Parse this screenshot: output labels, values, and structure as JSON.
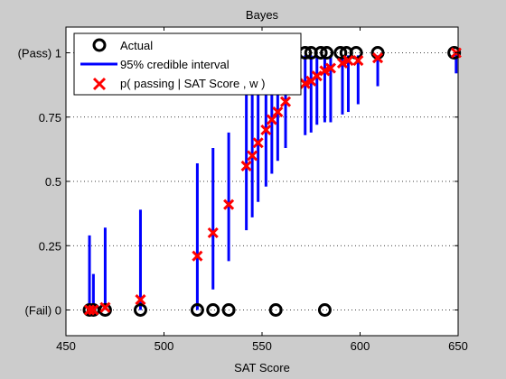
{
  "chart_data": {
    "type": "scatter",
    "title": "Bayes",
    "xlabel": "SAT Score",
    "ylabel": "",
    "xlim": [
      450,
      650
    ],
    "ylim": [
      -0.1,
      1.1
    ],
    "x_ticks": [
      450,
      500,
      550,
      600,
      650
    ],
    "y_ticks": [
      {
        "value": 0,
        "label": "(Fail)   0"
      },
      {
        "value": 0.25,
        "label": "0.25"
      },
      {
        "value": 0.5,
        "label": "0.5"
      },
      {
        "value": 0.75,
        "label": "0.75"
      },
      {
        "value": 1,
        "label": "(Pass)   1"
      }
    ],
    "grid": "horizontal dotted",
    "legend_position": "top-left",
    "colors": {
      "actual": "#000000",
      "interval": "#0000ff",
      "prediction": "#ff0000",
      "background": "#cccccc",
      "axes": "#ffffff"
    },
    "legend": [
      {
        "key": "actual",
        "label": "Actual"
      },
      {
        "key": "interval",
        "label": "95% credible interval"
      },
      {
        "key": "prediction",
        "label": "p( passing | SAT Score , w )"
      }
    ],
    "actual": [
      {
        "x": 462,
        "y": 0
      },
      {
        "x": 464,
        "y": 0
      },
      {
        "x": 470,
        "y": 0
      },
      {
        "x": 488,
        "y": 0
      },
      {
        "x": 517,
        "y": 0
      },
      {
        "x": 525,
        "y": 0
      },
      {
        "x": 533,
        "y": 0
      },
      {
        "x": 557,
        "y": 0
      },
      {
        "x": 582,
        "y": 0
      },
      {
        "x": 525,
        "y": 1
      },
      {
        "x": 542,
        "y": 1
      },
      {
        "x": 545,
        "y": 1
      },
      {
        "x": 548,
        "y": 1
      },
      {
        "x": 552,
        "y": 1
      },
      {
        "x": 557,
        "y": 1
      },
      {
        "x": 562,
        "y": 1
      },
      {
        "x": 572,
        "y": 1
      },
      {
        "x": 575,
        "y": 1
      },
      {
        "x": 580,
        "y": 1
      },
      {
        "x": 583,
        "y": 1
      },
      {
        "x": 590,
        "y": 1
      },
      {
        "x": 593,
        "y": 1
      },
      {
        "x": 598,
        "y": 1
      },
      {
        "x": 609,
        "y": 1
      },
      {
        "x": 648,
        "y": 1
      }
    ],
    "predictions": [
      {
        "x": 462,
        "p": 0.0,
        "lo": 0.0,
        "hi": 0.29
      },
      {
        "x": 464,
        "p": 0.0,
        "lo": 0.0,
        "hi": 0.14
      },
      {
        "x": 470,
        "p": 0.01,
        "lo": 0.0,
        "hi": 0.32
      },
      {
        "x": 488,
        "p": 0.04,
        "lo": 0.0,
        "hi": 0.39
      },
      {
        "x": 517,
        "p": 0.21,
        "lo": 0.0,
        "hi": 0.57
      },
      {
        "x": 525,
        "p": 0.3,
        "lo": 0.08,
        "hi": 0.63
      },
      {
        "x": 533,
        "p": 0.41,
        "lo": 0.19,
        "hi": 0.69
      },
      {
        "x": 542,
        "p": 0.56,
        "lo": 0.31,
        "hi": 0.84
      },
      {
        "x": 545,
        "p": 0.6,
        "lo": 0.36,
        "hi": 0.87
      },
      {
        "x": 548,
        "p": 0.65,
        "lo": 0.42,
        "hi": 0.9
      },
      {
        "x": 552,
        "p": 0.7,
        "lo": 0.48,
        "hi": 0.92
      },
      {
        "x": 555,
        "p": 0.74,
        "lo": 0.53,
        "hi": 0.94
      },
      {
        "x": 558,
        "p": 0.77,
        "lo": 0.58,
        "hi": 0.95
      },
      {
        "x": 562,
        "p": 0.81,
        "lo": 0.63,
        "hi": 0.96
      },
      {
        "x": 572,
        "p": 0.88,
        "lo": 0.68,
        "hi": 0.99
      },
      {
        "x": 575,
        "p": 0.89,
        "lo": 0.69,
        "hi": 0.99
      },
      {
        "x": 578,
        "p": 0.91,
        "lo": 0.72,
        "hi": 0.99
      },
      {
        "x": 582,
        "p": 0.93,
        "lo": 0.73,
        "hi": 0.99
      },
      {
        "x": 585,
        "p": 0.94,
        "lo": 0.73,
        "hi": 0.99
      },
      {
        "x": 591,
        "p": 0.96,
        "lo": 0.76,
        "hi": 0.99
      },
      {
        "x": 594,
        "p": 0.97,
        "lo": 0.77,
        "hi": 0.99
      },
      {
        "x": 599,
        "p": 0.97,
        "lo": 0.8,
        "hi": 0.99
      },
      {
        "x": 609,
        "p": 0.98,
        "lo": 0.87,
        "hi": 0.99
      },
      {
        "x": 649,
        "p": 1.0,
        "lo": 0.92,
        "hi": 1.0
      }
    ]
  }
}
